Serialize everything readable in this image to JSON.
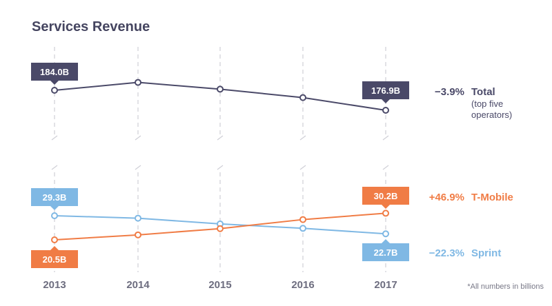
{
  "title": "Services Revenue",
  "footnote": "*All numbers in billions",
  "colors": {
    "total": "#4a4968",
    "tmobile": "#f07c45",
    "sprint": "#7fb8e4",
    "grid": "#cfcfd6",
    "text": "#454560"
  },
  "chart_data": [
    {
      "type": "line",
      "x": [
        "2013",
        "2014",
        "2015",
        "2016",
        "2017"
      ],
      "series": [
        {
          "name": "Total",
          "sublabel": "(top five operators)",
          "values": [
            184.0,
            186.8,
            184.4,
            181.4,
            176.9
          ],
          "change": "−3.9%",
          "start_label": "184.0B",
          "end_label": "176.9B"
        }
      ]
    },
    {
      "type": "line",
      "x": [
        "2013",
        "2014",
        "2015",
        "2016",
        "2017"
      ],
      "series": [
        {
          "name": "T-Mobile",
          "values": [
            20.5,
            22.3,
            24.6,
            27.9,
            30.2
          ],
          "change": "+46.9%",
          "start_label": "20.5B",
          "end_label": "30.2B"
        },
        {
          "name": "Sprint",
          "values": [
            29.3,
            28.4,
            26.3,
            24.7,
            22.7
          ],
          "change": "−22.3%",
          "start_label": "29.3B",
          "end_label": "22.7B"
        }
      ]
    }
  ]
}
